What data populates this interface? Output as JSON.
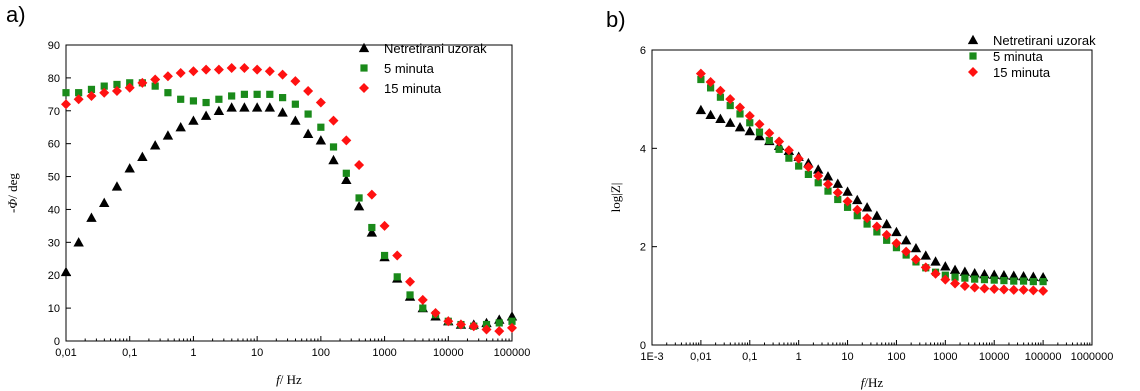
{
  "colors": {
    "Netretirani uzorak": "#000000",
    "5 minuta": "#1a8a1a",
    "15 minuta": "#ff1111"
  },
  "chart_data": [
    {
      "panel_label": "a)",
      "type": "scatter",
      "xscale": "log",
      "xlabel_italic": "f",
      "xlabel_rest": "/ Hz",
      "ylabel_italic": "Φ",
      "ylabel_pre": "-",
      "ylabel_rest": "/ deg",
      "xlim": [
        0.01,
        100000
      ],
      "ylim": [
        0,
        90
      ],
      "yticks": [
        0,
        10,
        20,
        30,
        40,
        50,
        60,
        70,
        80,
        90
      ],
      "ytick_labels": [
        "0",
        "10",
        "20",
        "30",
        "40",
        "50",
        "60",
        "70",
        "80",
        "90"
      ],
      "xticks": [
        0.01,
        0.1,
        1,
        10,
        100,
        1000,
        10000,
        100000
      ],
      "xtick_labels": [
        "0,01",
        "0,1",
        "1",
        "10",
        "100",
        "1000",
        "10000",
        "100000"
      ],
      "legend": "top-right",
      "series": [
        {
          "name": "Netretirani uzorak",
          "marker": "triangle",
          "x": [
            0.01,
            0.0158,
            0.0251,
            0.0398,
            0.0631,
            0.1,
            0.158,
            0.251,
            0.398,
            0.631,
            1,
            1.58,
            2.51,
            3.98,
            6.31,
            10,
            15.8,
            25.1,
            39.8,
            63.1,
            100,
            158,
            251,
            398,
            631,
            1000,
            1580,
            2510,
            3980,
            6310,
            10000,
            15800,
            25100,
            39800,
            63100,
            100000
          ],
          "y": [
            21,
            30,
            37.5,
            42,
            47,
            52.5,
            56,
            59.5,
            62.5,
            65,
            67,
            68.5,
            70,
            71,
            71,
            71,
            71,
            69.5,
            67,
            63,
            61,
            55,
            49,
            41,
            33,
            25.5,
            19,
            13.5,
            10,
            7.5,
            6,
            5,
            5,
            5.5,
            6.5,
            7.5
          ]
        },
        {
          "name": "5 minuta",
          "marker": "square",
          "x": [
            0.01,
            0.0158,
            0.0251,
            0.0398,
            0.0631,
            0.1,
            0.158,
            0.251,
            0.398,
            0.631,
            1,
            1.58,
            2.51,
            3.98,
            6.31,
            10,
            15.8,
            25.1,
            39.8,
            63.1,
            100,
            158,
            251,
            398,
            631,
            1000,
            1580,
            2510,
            3980,
            6310,
            10000,
            15800,
            25100,
            39800,
            63100,
            100000
          ],
          "y": [
            75.5,
            75.5,
            76.5,
            77.5,
            78,
            78.5,
            78.5,
            77.5,
            75.5,
            73.5,
            73,
            72.5,
            73.5,
            74.5,
            75,
            75,
            75,
            74,
            72,
            69,
            65,
            59,
            51,
            43.5,
            34.5,
            26,
            19.5,
            14,
            10,
            8,
            6,
            5,
            4.5,
            5,
            5.5,
            6
          ]
        },
        {
          "name": "15 minuta",
          "marker": "diamond",
          "x": [
            0.01,
            0.0158,
            0.0251,
            0.0398,
            0.0631,
            0.1,
            0.158,
            0.251,
            0.398,
            0.631,
            1,
            1.58,
            2.51,
            3.98,
            6.31,
            10,
            15.8,
            25.1,
            39.8,
            63.1,
            100,
            158,
            251,
            398,
            631,
            1000,
            1580,
            2510,
            3980,
            6310,
            10000,
            15800,
            25100,
            39800,
            63100,
            100000
          ],
          "y": [
            72,
            73.5,
            74.5,
            75.5,
            76,
            77,
            78.5,
            79.5,
            80.5,
            81.5,
            82,
            82.5,
            82.5,
            83,
            83,
            82.5,
            82,
            81,
            79,
            76,
            72.5,
            67,
            61,
            53.5,
            44.5,
            35,
            26,
            18,
            12.5,
            8.5,
            6,
            5,
            4.5,
            3.5,
            3,
            4
          ]
        }
      ]
    },
    {
      "panel_label": "b)",
      "type": "scatter",
      "xscale": "log",
      "xlabel_italic": "f",
      "xlabel_rest": "/Hz",
      "ylabel_text": "log|Z|",
      "xlim": [
        0.001,
        1000000
      ],
      "ylim": [
        0,
        6
      ],
      "yticks": [
        0,
        2,
        4,
        6
      ],
      "ytick_labels": [
        "0",
        "2",
        "4",
        "6"
      ],
      "xticks": [
        0.001,
        0.01,
        0.1,
        1,
        10,
        100,
        1000,
        10000,
        100000,
        1000000
      ],
      "xtick_labels": [
        "1E-3",
        "0,01",
        "0,1",
        "1",
        "10",
        "100",
        "1000",
        "10000",
        "100000",
        "1000000"
      ],
      "legend": "top-right",
      "series": [
        {
          "name": "Netretirani uzorak",
          "marker": "triangle",
          "x": [
            0.01,
            0.0158,
            0.0251,
            0.0398,
            0.0631,
            0.1,
            0.158,
            0.251,
            0.398,
            0.631,
            1,
            1.58,
            2.51,
            3.98,
            6.31,
            10,
            15.8,
            25.1,
            39.8,
            63.1,
            100,
            158,
            251,
            398,
            631,
            1000,
            1580,
            2510,
            3980,
            6310,
            10000,
            15800,
            25100,
            39800,
            63100,
            100000
          ],
          "y": [
            4.78,
            4.68,
            4.6,
            4.52,
            4.43,
            4.35,
            4.25,
            4.15,
            4.05,
            3.95,
            3.83,
            3.7,
            3.57,
            3.43,
            3.28,
            3.12,
            2.95,
            2.8,
            2.63,
            2.46,
            2.3,
            2.13,
            1.97,
            1.82,
            1.7,
            1.6,
            1.53,
            1.49,
            1.46,
            1.44,
            1.43,
            1.42,
            1.41,
            1.4,
            1.39,
            1.38
          ]
        },
        {
          "name": "5 minuta",
          "marker": "square",
          "x": [
            0.01,
            0.0158,
            0.0251,
            0.0398,
            0.0631,
            0.1,
            0.158,
            0.251,
            0.398,
            0.631,
            1,
            1.58,
            2.51,
            3.98,
            6.31,
            10,
            15.8,
            25.1,
            39.8,
            63.1,
            100,
            158,
            251,
            398,
            631,
            1000,
            1580,
            2510,
            3980,
            6310,
            10000,
            15800,
            25100,
            39800,
            63100,
            100000
          ],
          "y": [
            5.4,
            5.23,
            5.04,
            4.87,
            4.7,
            4.52,
            4.33,
            4.16,
            3.98,
            3.8,
            3.64,
            3.47,
            3.3,
            3.13,
            2.96,
            2.8,
            2.63,
            2.46,
            2.3,
            2.13,
            1.98,
            1.83,
            1.69,
            1.57,
            1.48,
            1.42,
            1.38,
            1.36,
            1.34,
            1.33,
            1.32,
            1.31,
            1.3,
            1.3,
            1.29,
            1.29
          ]
        },
        {
          "name": "15 minuta",
          "marker": "diamond",
          "x": [
            0.01,
            0.0158,
            0.0251,
            0.0398,
            0.0631,
            0.1,
            0.158,
            0.251,
            0.398,
            0.631,
            1,
            1.58,
            2.51,
            3.98,
            6.31,
            10,
            15.8,
            25.1,
            39.8,
            63.1,
            100,
            158,
            251,
            398,
            631,
            1000,
            1580,
            2510,
            3980,
            6310,
            10000,
            15800,
            25100,
            39800,
            63100,
            100000
          ],
          "y": [
            5.52,
            5.35,
            5.17,
            5.0,
            4.83,
            4.66,
            4.49,
            4.31,
            4.14,
            3.96,
            3.79,
            3.62,
            3.44,
            3.27,
            3.1,
            2.92,
            2.75,
            2.58,
            2.41,
            2.24,
            2.07,
            1.9,
            1.74,
            1.58,
            1.45,
            1.33,
            1.25,
            1.2,
            1.17,
            1.15,
            1.14,
            1.13,
            1.12,
            1.12,
            1.11,
            1.1
          ]
        }
      ]
    }
  ]
}
